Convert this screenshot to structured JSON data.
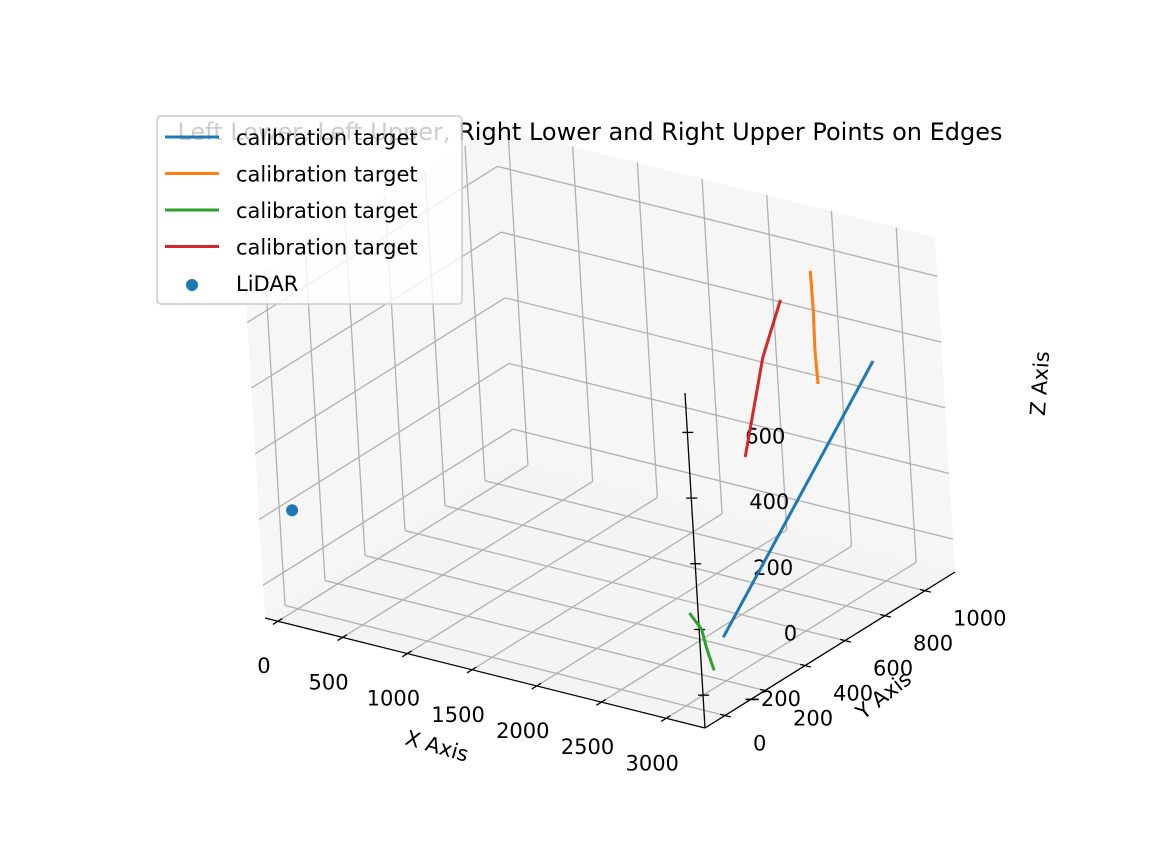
{
  "chart_data": {
    "type": "line",
    "title": "Left Lower, Left Upper, Right Lower and Right Upper Points on Edges",
    "xlabel": "X Axis",
    "ylabel": "Y Axis",
    "zlabel": "Z Axis",
    "xlim": [
      -100,
      3300
    ],
    "ylim": [
      -100,
      1150
    ],
    "zlim": [
      -300,
      720
    ],
    "x_ticks": [
      0,
      500,
      1000,
      1500,
      2000,
      2500,
      3000
    ],
    "y_ticks": [
      0,
      200,
      400,
      600,
      800,
      1000
    ],
    "z_ticks": [
      -200,
      0,
      200,
      400,
      600
    ],
    "x_tick_labels": [
      "0",
      "500",
      "1000",
      "1500",
      "2000",
      "2500",
      "3000"
    ],
    "y_tick_labels": [
      "0",
      "200",
      "400",
      "600",
      "800",
      "1000"
    ],
    "z_tick_labels": [
      "−200",
      "0",
      "200",
      "400",
      "600"
    ],
    "grid": true,
    "legend_position": "top-left",
    "series": [
      {
        "name": "calibration target",
        "kind": "line",
        "color": "#1f77b4",
        "points": [
          [
            2900,
            260,
            -200
          ],
          [
            3000,
            1000,
            370
          ]
        ]
      },
      {
        "name": "calibration target",
        "kind": "line",
        "color": "#ff7f0e",
        "points": [
          [
            2550,
            1000,
            600
          ],
          [
            2620,
            960,
            500
          ],
          [
            2680,
            920,
            400
          ],
          [
            2720,
            900,
            310
          ]
        ]
      },
      {
        "name": "calibration target",
        "kind": "line",
        "color": "#2ca02c",
        "points": [
          [
            2500,
            350,
            -200
          ],
          [
            2620,
            330,
            -230
          ],
          [
            2700,
            300,
            -270
          ],
          [
            2780,
            280,
            -320
          ]
        ]
      },
      {
        "name": "calibration target",
        "kind": "line",
        "color": "#d62728",
        "points": [
          [
            2180,
            860,
            50
          ],
          [
            2300,
            900,
            350
          ],
          [
            2400,
            940,
            520
          ]
        ]
      },
      {
        "name": "LiDAR",
        "kind": "scatter",
        "color": "#1f77b4",
        "points": [
          [
            0,
            0,
            0
          ]
        ]
      }
    ]
  }
}
